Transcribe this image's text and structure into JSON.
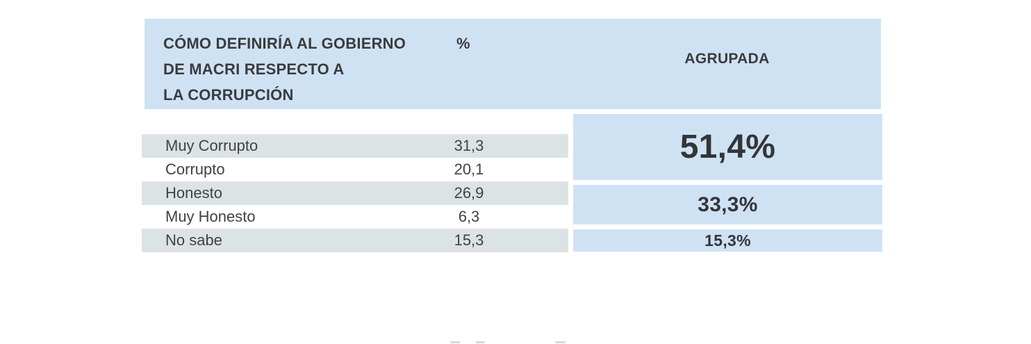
{
  "chart_data": {
    "type": "table",
    "title": "CÓMO DEFINIRÍA AL GOBIERNO DE MACRI RESPECTO A LA CORRUPCIÓN",
    "columns": [
      "CÓMO DEFINIRÍA AL GOBIERNO DE MACRI RESPECTO A LA CORRUPCIÓN",
      "%",
      "AGRUPADA"
    ],
    "categories": [
      "Muy Corrupto",
      "Corrupto",
      "Honesto",
      "Muy Honesto",
      "No sabe"
    ],
    "values": [
      31.3,
      20.1,
      26.9,
      6.3,
      15.3
    ],
    "grouped": [
      {
        "categories": [
          "Muy Corrupto",
          "Corrupto"
        ],
        "value": 51.4
      },
      {
        "categories": [
          "Honesto",
          "Muy Honesto"
        ],
        "value": 33.3
      },
      {
        "categories": [
          "No sabe"
        ],
        "value": 15.3
      }
    ]
  },
  "table": {
    "header": {
      "question_lines": [
        "CÓMO DEFINIRÍA AL GOBIERNO",
        "DE MACRI RESPECTO A",
        "LA CORRUPCIÓN"
      ],
      "percent_label": "%",
      "grouped_label": "AGRUPADA"
    },
    "rows": [
      {
        "label": "Muy Corrupto",
        "value": "31,3"
      },
      {
        "label": "Corrupto",
        "value": "20,1"
      },
      {
        "label": "Honesto",
        "value": "26,9"
      },
      {
        "label": "Muy Honesto",
        "value": "6,3"
      },
      {
        "label": "No sabe",
        "value": "15,3"
      }
    ],
    "groups": [
      {
        "value": "51,4%"
      },
      {
        "value": "33,3%"
      },
      {
        "value": "15,3%"
      }
    ]
  },
  "colors": {
    "header_blue": "#cfe2f4",
    "row_gray": "#dce3e5",
    "text_dark": "#3a3b3d",
    "background": "#ffffff"
  }
}
